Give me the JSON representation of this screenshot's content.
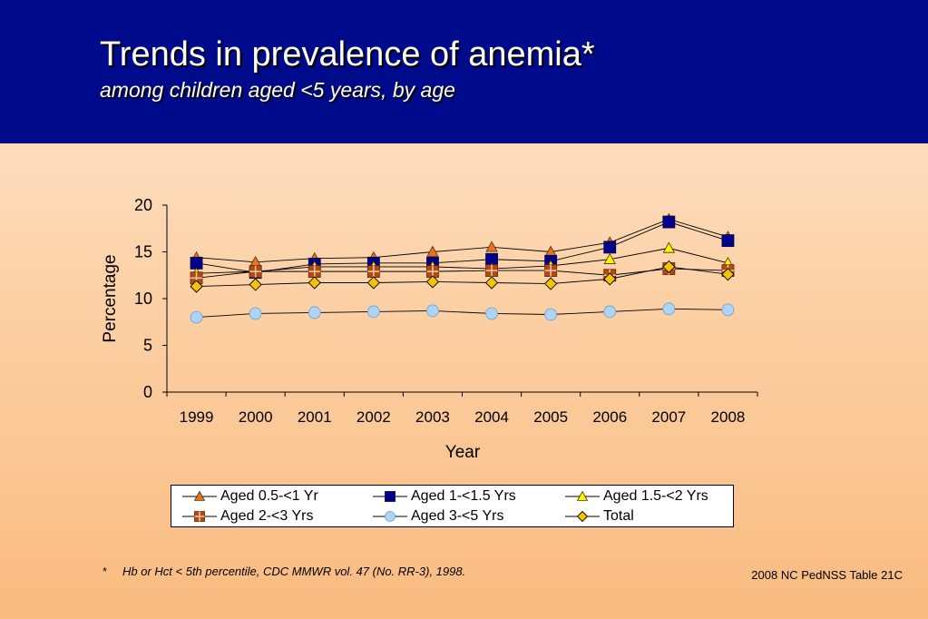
{
  "header": {
    "title": "Trends in prevalence of anemia*",
    "subtitle": "among children aged <5 years, by age"
  },
  "footnote": {
    "marker": "*",
    "text": "Hb or Hct < 5th percentile, CDC MMWR vol. 47 (No. RR-3), 1998."
  },
  "source": "2008 NC PedNSS Table 21C",
  "colors": {
    "header_bg": "#000b8c",
    "orange": "#e8731f",
    "navy": "#00008b",
    "yellow": "#f7f700",
    "brown": "#b04a14",
    "lightblue": "#aed4f5",
    "gold": "#f5c400"
  },
  "chart_data": {
    "type": "line",
    "xlabel": "Year",
    "ylabel": "Percentage",
    "ylim": [
      0,
      20
    ],
    "yticks": [
      "0",
      "5",
      "10",
      "15",
      "20"
    ],
    "categories": [
      "1999",
      "2000",
      "2001",
      "2002",
      "2003",
      "2004",
      "2005",
      "2006",
      "2007",
      "2008"
    ],
    "grid": false,
    "legend": "bottom",
    "series": [
      {
        "name": "Aged 0.5-<1 Yr",
        "marker": "triangle",
        "color": "#e8731f",
        "values": [
          14.4,
          13.9,
          14.3,
          14.4,
          15.0,
          15.5,
          15.0,
          16.0,
          18.5,
          16.6
        ]
      },
      {
        "name": "Aged 1-<1.5 Yrs",
        "marker": "square",
        "color": "#00008b",
        "values": [
          13.8,
          12.8,
          13.7,
          13.8,
          13.8,
          14.2,
          14.0,
          15.5,
          18.2,
          16.2
        ]
      },
      {
        "name": "Aged 1.5-<2 Yrs",
        "marker": "triangle",
        "color": "#f7f700",
        "values": [
          12.7,
          12.9,
          13.4,
          13.4,
          13.4,
          13.2,
          13.5,
          14.2,
          15.4,
          13.8
        ]
      },
      {
        "name": "Aged 2-<3 Yrs",
        "marker": "crosssquare",
        "color": "#b04a14",
        "values": [
          12.2,
          12.9,
          12.9,
          12.9,
          12.9,
          13.0,
          13.0,
          12.5,
          13.2,
          13.0
        ]
      },
      {
        "name": "Aged 3-<5 Yrs",
        "marker": "circle",
        "color": "#aed4f5",
        "values": [
          8.0,
          8.4,
          8.5,
          8.6,
          8.7,
          8.4,
          8.3,
          8.6,
          8.9,
          8.8
        ]
      },
      {
        "name": "Total",
        "marker": "diamond",
        "color": "#f5c400",
        "values": [
          11.3,
          11.5,
          11.7,
          11.7,
          11.8,
          11.7,
          11.6,
          12.1,
          13.4,
          12.6
        ]
      }
    ]
  }
}
